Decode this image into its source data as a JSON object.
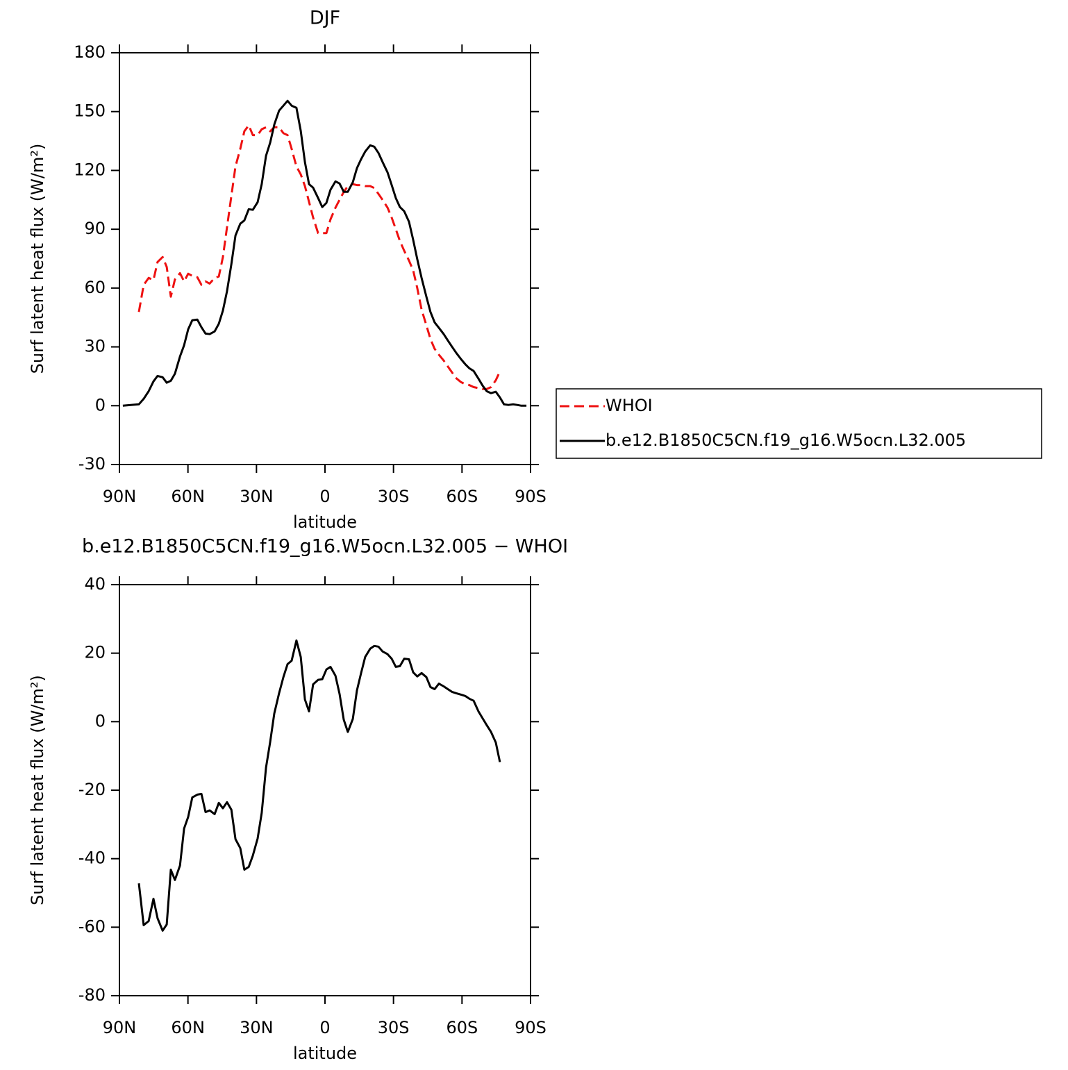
{
  "chart_data": [
    {
      "type": "line",
      "title": "DJF",
      "x_label": "latitude",
      "y_label": "Surf latent heat flux (W/m²)",
      "x": [
        88.5,
        81.5,
        79.4,
        77.2,
        75.1,
        73.3,
        71.1,
        69.3,
        67.5,
        65.7,
        63.5,
        61.7,
        59.9,
        58.1,
        55.9,
        54.1,
        52.3,
        50.5,
        48.3,
        46.5,
        44.7,
        42.9,
        41,
        39.2,
        37.1,
        35.3,
        33.4,
        31.6,
        29.5,
        27.7,
        25.8,
        24,
        22.2,
        20.1,
        18.2,
        16.4,
        14.6,
        12.5,
        10.6,
        8.8,
        7,
        5.2,
        3,
        1.2,
        -0.6,
        -2.4,
        -4.6,
        -6.4,
        -8.2,
        -10,
        -12.2,
        -14,
        -15.8,
        -17.6,
        -19.8,
        -21.6,
        -23.4,
        -25.2,
        -27.4,
        -29.2,
        -31,
        -32.8,
        -34.7,
        -36.8,
        -38.6,
        -40.4,
        -42.3,
        -44.4,
        -46.2,
        -48,
        -49.9,
        -52,
        -53.8,
        -55.6,
        -57.5,
        -59.6,
        -61.4,
        -63.2,
        -65.1,
        -67.2,
        -69,
        -70.8,
        -72.7,
        -74.8,
        -76.6,
        -78.4,
        -80.3,
        -82.4,
        -84.2,
        -86,
        -88.2
      ],
      "series": [
        {
          "name": "WHOI",
          "color": "#ee1111",
          "dash": "dashed",
          "values": [
            null,
            47.8,
            61.6,
            65.2,
            64.1,
            73.3,
            75.8,
            70.8,
            55.6,
            64.4,
            67.6,
            63.4,
            67.3,
            66.2,
            65.5,
            61.6,
            63.4,
            62.3,
            65.2,
            65.9,
            75.8,
            91,
            107,
            122,
            131,
            140,
            143,
            138,
            138,
            141,
            142,
            140,
            142,
            142,
            139,
            138,
            131,
            122,
            118,
            112,
            104,
            96,
            88,
            88,
            88,
            95,
            101,
            105,
            109,
            112,
            113,
            112.5,
            112.5,
            112,
            112,
            111,
            108,
            105,
            101,
            96,
            90,
            84,
            79,
            74,
            69,
            60,
            49,
            41,
            34,
            29,
            26,
            23,
            20,
            17,
            14,
            12,
            11,
            10.5,
            9.5,
            9,
            8.5,
            8.5,
            9.5,
            13,
            17.5,
            null,
            null,
            null,
            null,
            null,
            null
          ]
        },
        {
          "name": "b.e12.B1850C5CN.f19_g16.W5ocn.L32.005",
          "color": "#000000",
          "dash": "solid",
          "values": [
            0,
            0.7,
            3.5,
            7.4,
            12.4,
            15.2,
            14.5,
            11.7,
            12.7,
            16.3,
            25.1,
            30.8,
            39,
            43.6,
            43.9,
            40,
            36.8,
            36.5,
            37.9,
            41.8,
            48.5,
            58.4,
            72.2,
            86.8,
            92.8,
            94.5,
            100.2,
            99.9,
            103.8,
            113,
            127.5,
            134.2,
            143.4,
            150.5,
            153,
            155.5,
            153,
            151.9,
            140.2,
            124.3,
            113,
            111.2,
            105.9,
            101.3,
            103.4,
            110.1,
            114.4,
            113.3,
            109.1,
            109.1,
            114,
            121.1,
            125.7,
            129.6,
            132.8,
            132.1,
            128.9,
            124.3,
            119,
            112.6,
            105.9,
            101.3,
            99.2,
            93.8,
            84.6,
            74.7,
            65.2,
            55.6,
            47.8,
            42.5,
            39.7,
            36.5,
            33.3,
            30.1,
            26.9,
            23.7,
            21.2,
            19.1,
            17.7,
            13.8,
            10.3,
            7.4,
            6.4,
            7.1,
            4.2,
            0.7,
            0.4,
            0.7,
            0.4,
            0,
            0
          ]
        }
      ],
      "xlim": [
        90,
        -90
      ],
      "xticks": [
        {
          "value": 90,
          "label": "90N"
        },
        {
          "value": 60,
          "label": "60N"
        },
        {
          "value": 30,
          "label": "30N"
        },
        0,
        {
          "value": -30,
          "label": "30S"
        },
        {
          "value": -60,
          "label": "60S"
        },
        {
          "value": -90,
          "label": "90S"
        }
      ],
      "ylim": [
        -30,
        180
      ],
      "yticks": [
        -30,
        0,
        30,
        60,
        90,
        120,
        150,
        180
      ],
      "legend": "right"
    },
    {
      "type": "line",
      "title": "b.e12.B1850C5CN.f19_g16.W5ocn.L32.005 − WHOI",
      "x_label": "latitude",
      "y_label": "Surf latent heat flux (W/m²)",
      "x": [
        88.5,
        81.5,
        79.4,
        77.2,
        75.1,
        73.3,
        71.1,
        69.3,
        67.5,
        65.7,
        63.5,
        61.7,
        59.9,
        58.1,
        55.9,
        54.1,
        52.3,
        50.5,
        48.3,
        46.5,
        44.7,
        42.9,
        41,
        39.2,
        37.1,
        35.3,
        33.4,
        31.6,
        29.5,
        27.7,
        25.8,
        24,
        22.2,
        20.1,
        18.2,
        16.4,
        14.6,
        12.5,
        10.6,
        8.8,
        7,
        5.2,
        3,
        1.2,
        -0.6,
        -2.4,
        -4.6,
        -6.4,
        -8.2,
        -10,
        -12.2,
        -14,
        -15.8,
        -17.6,
        -19.8,
        -21.6,
        -23.4,
        -25.2,
        -27.4,
        -29.2,
        -31,
        -32.8,
        -34.7,
        -36.8,
        -38.6,
        -40.4,
        -42.3,
        -44.4,
        -46.2,
        -48,
        -49.9,
        -52,
        -53.8,
        -55.6,
        -57.5,
        -59.6,
        -61.4,
        -63.2,
        -65.1,
        -67.2,
        -69,
        -70.8,
        -72.7,
        -74.8,
        -76.6,
        -78.4,
        -80.3,
        -82.4,
        -84.2,
        -86,
        -88.2
      ],
      "series": [
        {
          "color": "#000000",
          "dash": "solid",
          "values": [
            null,
            -47.2,
            -59.4,
            -58.2,
            -51.7,
            -57.4,
            -61,
            -59.2,
            -43.2,
            -46.2,
            -42,
            -31.2,
            -27.8,
            -22.1,
            -21.3,
            -21.1,
            -26.4,
            -25.9,
            -27,
            -23.7,
            -25.3,
            -23.5,
            -25.7,
            -34.3,
            -36.9,
            -43.2,
            -42.4,
            -39.1,
            -34.1,
            -26.6,
            -13.4,
            -5.9,
            2.4,
            8.3,
            13,
            16.8,
            17.8,
            23.7,
            18.9,
            6.5,
            3,
            10.9,
            12.2,
            12.4,
            15.2,
            16,
            13.4,
            8.1,
            0.6,
            -3,
            0.8,
            9.1,
            14.2,
            18.9,
            21.3,
            22.1,
            21.9,
            20.5,
            19.7,
            18.4,
            16,
            16.2,
            18.4,
            18.2,
            14.4,
            13.2,
            14.2,
            13,
            10.1,
            9.5,
            11.1,
            10.3,
            9.5,
            8.7,
            8.3,
            7.9,
            7.5,
            6.7,
            6.1,
            3,
            1,
            -1,
            -3,
            -6.1,
            -11.8,
            null,
            null,
            null,
            null,
            null,
            null
          ]
        }
      ],
      "xlim": [
        90,
        -90
      ],
      "xticks": [
        {
          "value": 90,
          "label": "90N"
        },
        {
          "value": 60,
          "label": "60N"
        },
        {
          "value": 30,
          "label": "30N"
        },
        0,
        {
          "value": -30,
          "label": "30S"
        },
        {
          "value": -60,
          "label": "60S"
        },
        {
          "value": -90,
          "label": "90S"
        }
      ],
      "ylim": [
        -80,
        40
      ],
      "yticks": [
        -80,
        -60,
        -40,
        -20,
        0,
        20,
        40
      ]
    }
  ]
}
